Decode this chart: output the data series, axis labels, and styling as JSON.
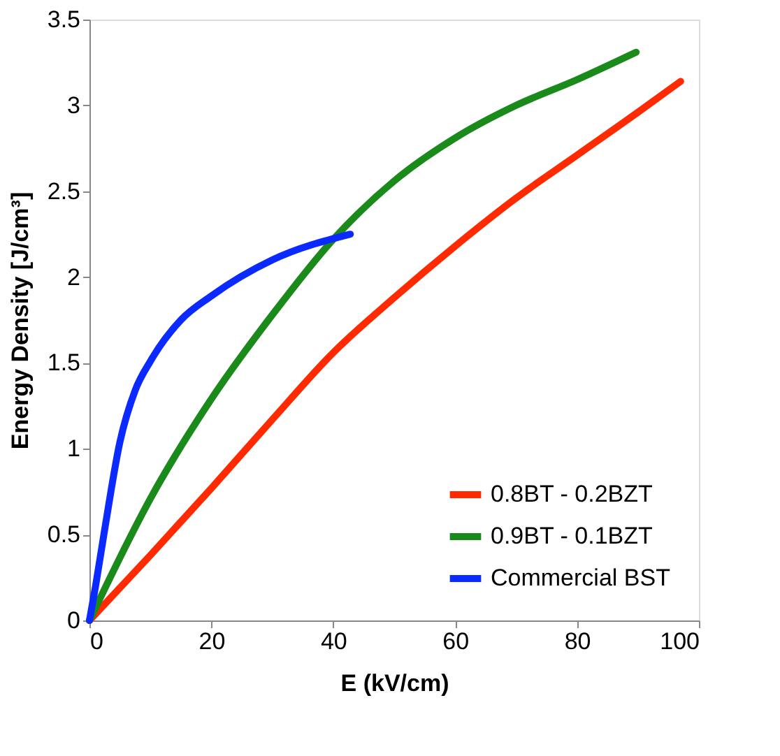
{
  "chart_data": {
    "type": "line",
    "xlabel": "E (kV/cm)",
    "ylabel": "Energy Density [J/cm³]",
    "xlim": [
      0,
      100
    ],
    "xticks": [
      0,
      20,
      40,
      60,
      80,
      100
    ],
    "ylim": [
      0,
      3.5
    ],
    "yticks": [
      0,
      0.5,
      1,
      1.5,
      2,
      2.5,
      3,
      3.5
    ],
    "grid": false,
    "legend": "bottom right",
    "marker": "none",
    "line_style": "solid",
    "series": [
      {
        "name": "0.8BT - 0.2BZT",
        "color": "#ff2a00",
        "x": [
          0,
          10,
          20,
          30,
          40,
          50,
          60,
          70,
          80,
          90,
          97
        ],
        "values": [
          0,
          0.38,
          0.77,
          1.17,
          1.56,
          1.88,
          2.18,
          2.46,
          2.71,
          2.96,
          3.14
        ]
      },
      {
        "name": "0.9BT - 0.1BZT",
        "color": "#1a8a1a",
        "x": [
          0,
          10,
          20,
          30,
          40,
          50,
          60,
          70,
          80,
          89.7
        ],
        "values": [
          0,
          0.71,
          1.29,
          1.78,
          2.22,
          2.56,
          2.81,
          3.0,
          3.15,
          3.31
        ]
      },
      {
        "name": "Commercial BST",
        "color": "#0a2aff",
        "x": [
          0,
          1,
          2.5,
          5,
          7.5,
          10,
          15,
          20,
          30,
          42.8
        ],
        "values": [
          0,
          0.2,
          0.53,
          1.04,
          1.34,
          1.51,
          1.75,
          1.89,
          2.1,
          2.25
        ]
      }
    ]
  }
}
